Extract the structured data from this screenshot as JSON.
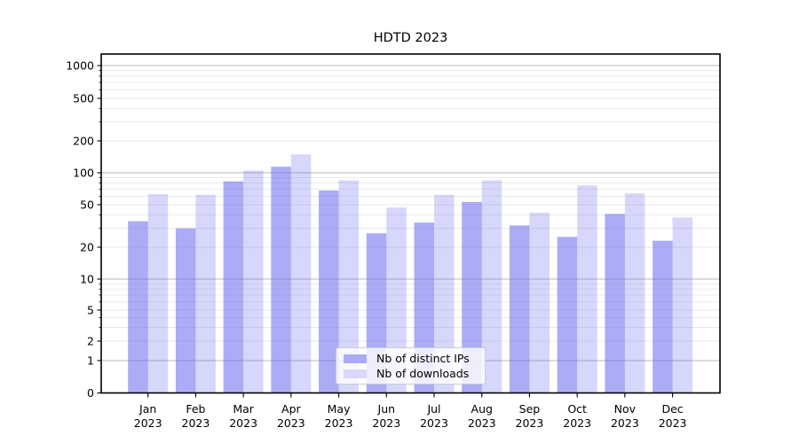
{
  "figure": {
    "title": "HDTD 2023",
    "background": "#ffffff"
  },
  "chart_data": {
    "type": "bar",
    "title": "HDTD 2023",
    "categories": [
      "Jan 2023",
      "Feb 2023",
      "Mar 2023",
      "Apr 2023",
      "May 2023",
      "Jun 2023",
      "Jul 2023",
      "Aug 2023",
      "Sep 2023",
      "Oct 2023",
      "Nov 2023",
      "Dec 2023"
    ],
    "series": [
      {
        "key": "distinct-ips",
        "name": "Nb of distinct IPs",
        "swatch_color": "#aaaaf5",
        "bar_fill": "rgba(102,102,238,0.55)",
        "values": [
          35,
          30,
          83,
          114,
          68,
          27,
          34,
          53,
          32,
          25,
          41,
          23
        ]
      },
      {
        "key": "downloads",
        "name": "Nb of downloads",
        "swatch_color": "#d8d8fa",
        "bar_fill": "rgba(102,102,238,0.26)",
        "values": [
          63,
          62,
          105,
          149,
          85,
          47,
          62,
          85,
          42,
          76,
          64,
          38
        ]
      }
    ],
    "xlabel": "",
    "ylabel": "",
    "yscale": "symlog",
    "ylim": [
      0,
      1000
    ],
    "yticks": [
      0,
      1,
      2,
      5,
      10,
      20,
      50,
      100,
      200,
      500,
      1000
    ],
    "grid": "both",
    "legend_position": "lower center"
  },
  "colors": {
    "major_grid": "#b8b8b8",
    "minor_grid": "#e8e8e8",
    "spine": "#000000",
    "tick": "#000000",
    "text": "#000000",
    "legend_border": "#cccccc",
    "legend_bg": "rgba(255,255,255,0.8)"
  }
}
